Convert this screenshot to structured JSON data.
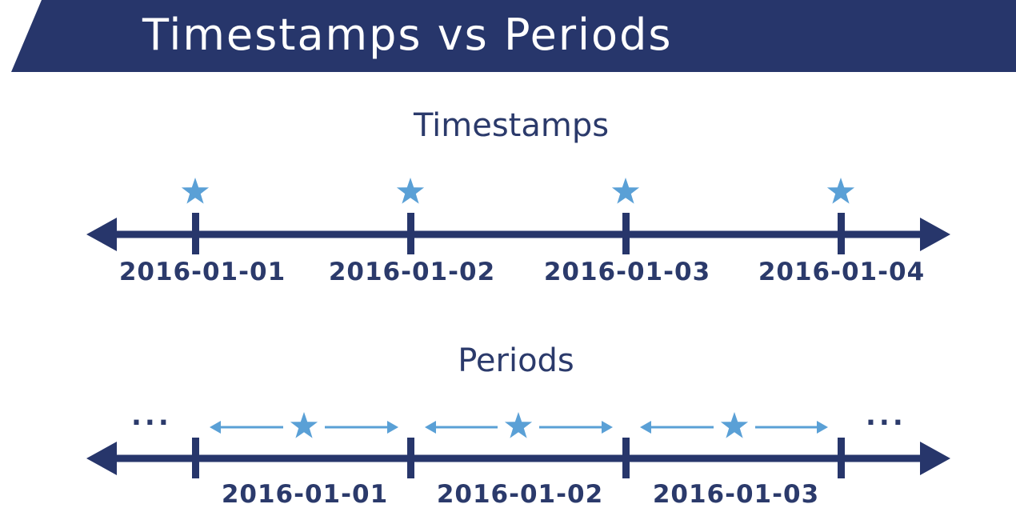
{
  "header": {
    "title": "Timestamps vs Periods"
  },
  "timestamps": {
    "title": "Timestamps",
    "labels": [
      "2016-01-01",
      "2016-01-02",
      "2016-01-03",
      "2016-01-04"
    ]
  },
  "periods": {
    "title": "Periods",
    "labels": [
      "2016-01-01",
      "2016-01-02",
      "2016-01-03"
    ],
    "ellipsis_left": "...",
    "ellipsis_right": "..."
  },
  "colors": {
    "banner": "#27366b",
    "axis": "#2b3a6b",
    "accent": "#5aa0d6",
    "text": "#2b3a6b"
  },
  "icons": {
    "marker": "star-icon",
    "axis_end": "arrowhead-icon"
  }
}
